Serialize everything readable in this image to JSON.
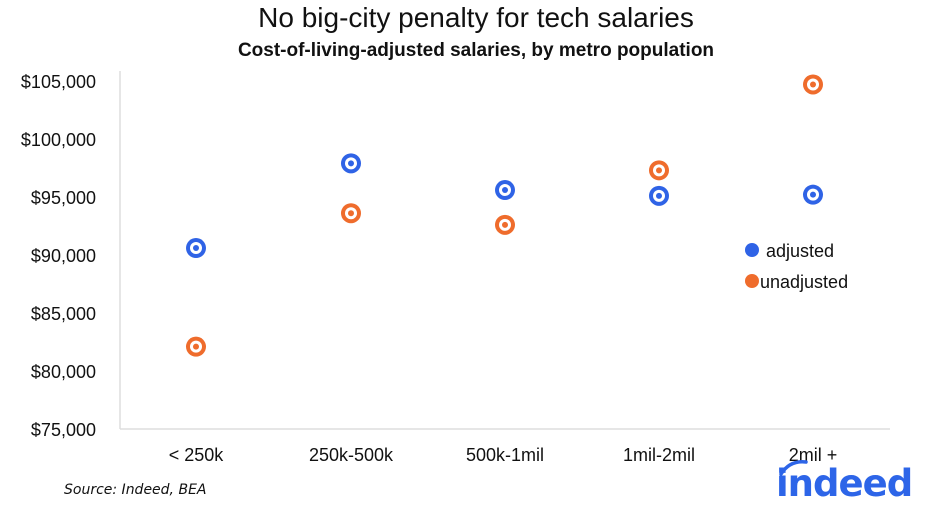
{
  "chart_data": {
    "type": "scatter",
    "title": "No big-city penalty for tech salaries",
    "subtitle": "Cost-of-living-adjusted salaries, by metro population",
    "xlabel": "",
    "ylabel": "",
    "categories": [
      "< 250k",
      "250k-500k",
      "500k-1mil",
      "1mil-2mil",
      "2mil +"
    ],
    "ylim": [
      75000,
      105000
    ],
    "yticks": [
      75000,
      80000,
      85000,
      90000,
      95000,
      100000,
      105000
    ],
    "ytick_labels": [
      "$75,000",
      "$80,000",
      "$85,000",
      "$90,000",
      "$95,000",
      "$100,000",
      "$105,000"
    ],
    "grid": false,
    "legend_position": "right",
    "series": [
      {
        "name": "adjusted",
        "color": "#2f63e6",
        "values": [
          90600,
          97900,
          95600,
          95100,
          95200
        ]
      },
      {
        "name": "unadjusted",
        "color": "#ef6c2c",
        "values": [
          82100,
          93600,
          92600,
          97300,
          104700
        ]
      }
    ]
  },
  "source": "Source: Indeed, BEA",
  "logo_text": "indeed"
}
